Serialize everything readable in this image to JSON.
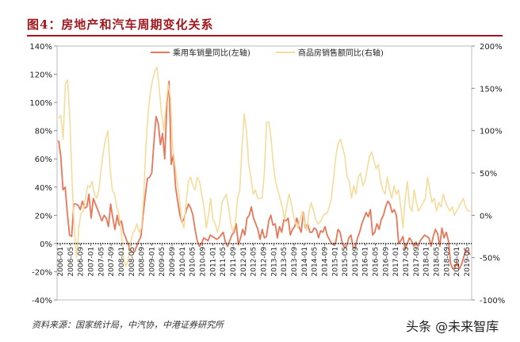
{
  "figure": {
    "title": "图4：房地产和汽车周期变化关系",
    "source": "资料来源：国家统计局，中汽协，中港证券研究所",
    "watermark": "头条 @未来智库"
  },
  "chart_data": {
    "type": "line",
    "title": "",
    "xlabel": "",
    "x_tick_labels": [
      "2006-01",
      "2006-05",
      "2006-09",
      "2007-01",
      "2007-05",
      "2007-09",
      "2008-01",
      "2008-05",
      "2008-09",
      "2009-01",
      "2009-05",
      "2009-09",
      "2010-01",
      "2010-05",
      "2010-09",
      "2011-01",
      "2011-05",
      "2011-09",
      "2012-01",
      "2012-05",
      "2012-09",
      "2013-01",
      "2013-05",
      "2013-09",
      "2014-01",
      "2014-05",
      "2014-09",
      "2015-01",
      "2015-05",
      "2015-09",
      "2016-01",
      "2016-05",
      "2016-09",
      "2017-01",
      "2017-05",
      "2017-09",
      "2018-01",
      "2018-05",
      "2018-09",
      "2019-01",
      "2019-05"
    ],
    "y_left": {
      "ylim": [
        -40,
        140
      ],
      "ticks": [
        "-40%",
        "-20%",
        "0%",
        "20%",
        "40%",
        "60%",
        "80%",
        "100%",
        "120%",
        "140%"
      ]
    },
    "y_right": {
      "ylim": [
        -100,
        200
      ],
      "ticks": [
        "-100%",
        "-50%",
        "0%",
        "50%",
        "100%",
        "150%",
        "200%"
      ]
    },
    "legend_position": "top",
    "colors": {
      "car": "#e8775a",
      "house": "#f5dc9c",
      "title": "#a0181e",
      "zero_line": "#222222"
    },
    "series": [
      {
        "name": "乘用车销量同比(左轴)",
        "axis": "left",
        "color": "#e8775a",
        "values": [
          73,
          62,
          38,
          40,
          22,
          6,
          5,
          28,
          28,
          27,
          24,
          30,
          25,
          26,
          35,
          18,
          32,
          28,
          24,
          20,
          16,
          20,
          18,
          12,
          28,
          18,
          10,
          20,
          13,
          16,
          8,
          4,
          0,
          -4,
          -6,
          -6,
          -2,
          2,
          5,
          20,
          34,
          46,
          47,
          50,
          72,
          90,
          85,
          70,
          78,
          60,
          100,
          115,
          56,
          63,
          40,
          30,
          20,
          15,
          18,
          24,
          28,
          25,
          20,
          10,
          2,
          -2,
          0,
          4,
          3,
          2,
          6,
          5,
          4,
          3,
          4,
          6,
          8,
          1,
          -2,
          2,
          6,
          8,
          14,
          -1,
          4,
          10,
          6,
          18,
          20,
          26,
          18,
          14,
          10,
          3,
          10,
          4,
          5,
          16,
          20,
          13,
          14,
          4,
          12,
          8,
          17,
          16,
          18,
          6,
          10,
          12,
          18,
          12,
          8,
          22,
          11,
          14,
          8,
          8,
          11,
          10,
          4,
          9,
          8,
          12,
          6,
          3,
          0,
          -1,
          1,
          10,
          8,
          0,
          -3,
          -2,
          4,
          6,
          -3,
          -3,
          4,
          8,
          14,
          18,
          22,
          19,
          24,
          6,
          8,
          14,
          10,
          17,
          20,
          26,
          30,
          28,
          22,
          24,
          20,
          0,
          2,
          5,
          -4,
          0,
          4,
          2,
          -2,
          1,
          -2,
          2,
          4,
          6,
          5,
          4,
          -2,
          5,
          10,
          7,
          -2,
          11,
          4,
          8,
          2,
          -14,
          -18,
          -17,
          -13,
          -18,
          -15,
          -10,
          -5,
          -5,
          -8
        ]
      },
      {
        "name": "商品房销售额同比(右轴)",
        "axis": "right",
        "color": "#f5dc9c",
        "values": [
          115,
          118,
          90,
          155,
          160,
          115,
          40,
          -15,
          -50,
          -15,
          2,
          5,
          20,
          35,
          33,
          40,
          25,
          20,
          30,
          55,
          75,
          90,
          100,
          55,
          30,
          25,
          10,
          0,
          -20,
          -50,
          -60,
          -55,
          -35,
          -22,
          -18,
          -10,
          -20,
          -15,
          20,
          80,
          120,
          145,
          160,
          170,
          175,
          150,
          120,
          100,
          130,
          155,
          140,
          80,
          60,
          40,
          20,
          -5,
          -15,
          15,
          40,
          45,
          35,
          30,
          45,
          40,
          25,
          10,
          -15,
          0,
          20,
          -5,
          -10,
          -20,
          -10,
          15,
          20,
          25,
          10,
          -10,
          -20,
          -10,
          20,
          30,
          80,
          120,
          100,
          60,
          45,
          25,
          30,
          20,
          20,
          20,
          50,
          110,
          110,
          90,
          60,
          40,
          30,
          20,
          10,
          -5,
          10,
          25,
          15,
          0,
          -10,
          -15,
          -5,
          5,
          -8,
          -18,
          5,
          15,
          5,
          -5,
          -10,
          -8,
          -2,
          2,
          2,
          10,
          20,
          45,
          70,
          85,
          90,
          80,
          70,
          45,
          40,
          20,
          35,
          25,
          45,
          50,
          35,
          40,
          55,
          70,
          75,
          65,
          55,
          60,
          40,
          30,
          25,
          45,
          30,
          20,
          35,
          25,
          30,
          10,
          -15,
          20,
          40,
          10,
          5,
          30,
          15,
          5,
          10,
          15,
          20,
          45,
          30,
          15,
          20,
          5,
          15,
          10,
          25,
          15,
          10,
          5,
          10,
          0,
          5,
          10,
          15,
          20,
          10,
          5,
          5
        ]
      }
    ]
  }
}
